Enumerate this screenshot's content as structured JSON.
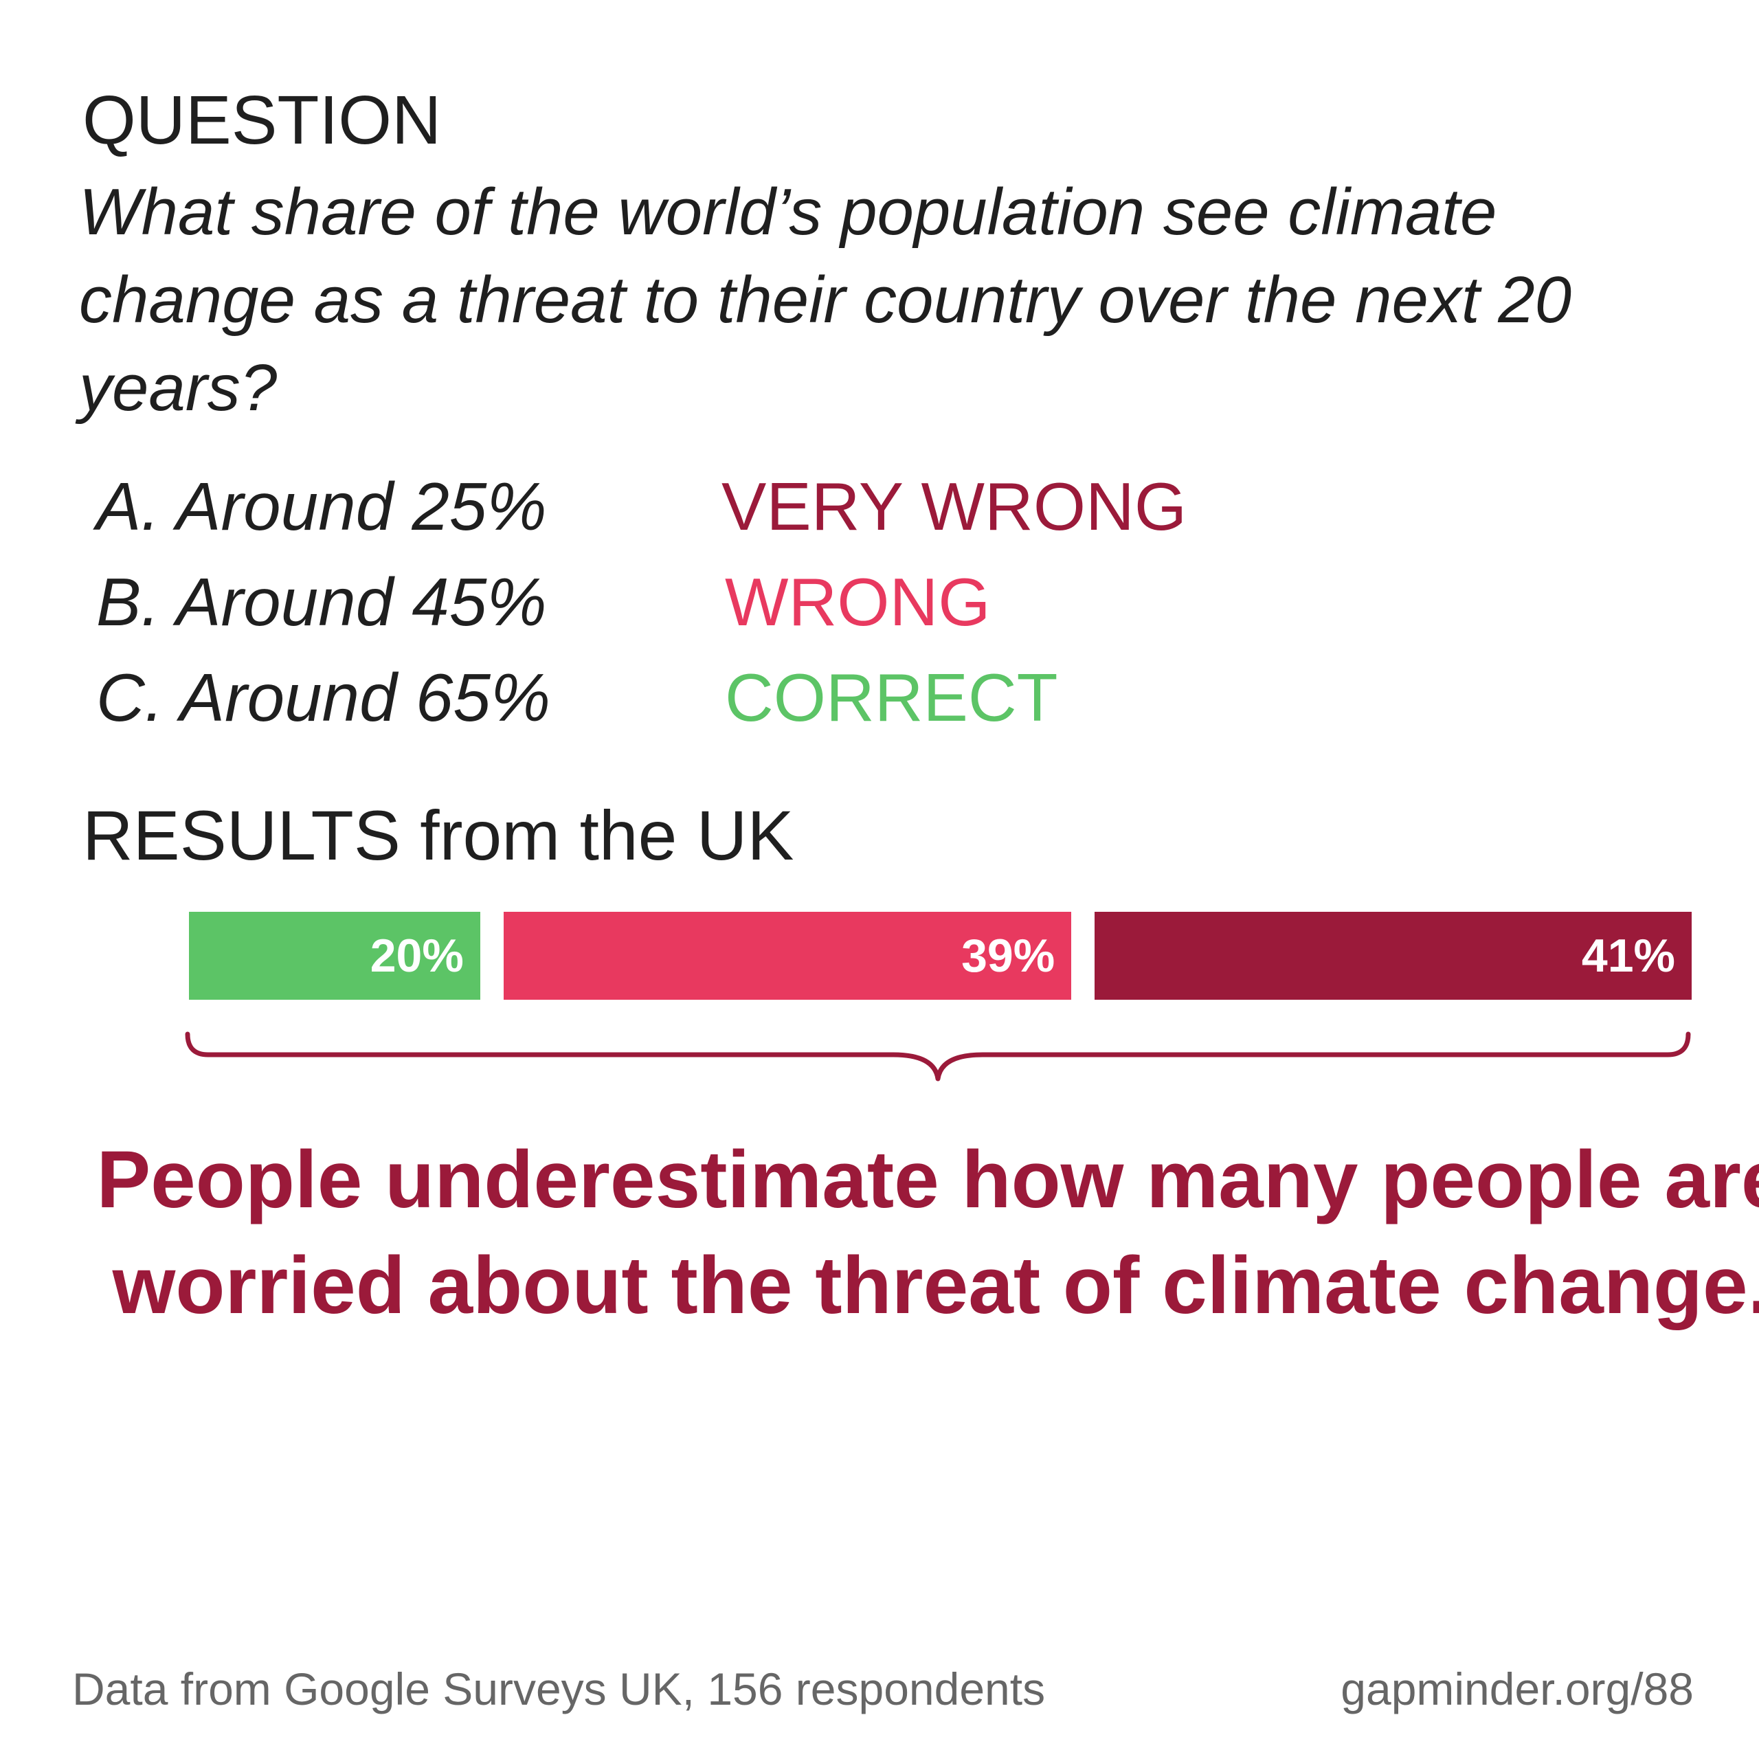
{
  "question": {
    "heading": "QUESTION",
    "text": "What share of the world’s population see climate change as a threat to their country over the next 20 years?"
  },
  "options": [
    {
      "label": "A. Around 25%",
      "verdict": "VERY WRONG",
      "color": "#9b1a3a"
    },
    {
      "label": "B. Around 45%",
      "verdict": "WRONG",
      "color": "#e8395f"
    },
    {
      "label": "C. Around 65%",
      "verdict": "CORRECT",
      "color": "#5cc466"
    }
  ],
  "results_heading": "RESULTS from the UK",
  "chart_data": {
    "type": "bar",
    "stacked": true,
    "orientation": "horizontal",
    "series": [
      {
        "name": "CORRECT",
        "value": 20,
        "label": "20%",
        "color": "#5cc466"
      },
      {
        "name": "WRONG",
        "value": 39,
        "label": "39%",
        "color": "#e8395f"
      },
      {
        "name": "VERY WRONG",
        "value": 41,
        "label": "41%",
        "color": "#9b1a3a"
      }
    ],
    "unit": "%"
  },
  "takeaway": "People underestimate how many people are worried about the threat of climate change.",
  "footer": {
    "source": "Data from Google Surveys UK, 156 respondents",
    "url": "gapminder.org/88"
  }
}
